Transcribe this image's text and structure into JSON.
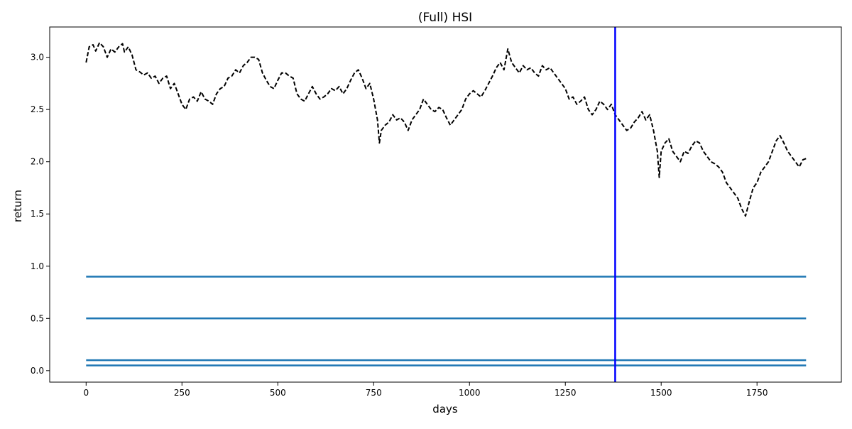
{
  "chart_data": {
    "type": "line",
    "title": "(Full) HSI",
    "xlabel": "days",
    "ylabel": "return",
    "xlim": [
      -95,
      1970
    ],
    "ylim": [
      -0.11,
      3.29
    ],
    "xticks": [
      0,
      250,
      500,
      750,
      1000,
      1250,
      1500,
      1750
    ],
    "yticks": [
      0.0,
      0.5,
      1.0,
      1.5,
      2.0,
      2.5,
      3.0
    ],
    "grid": false,
    "colors": {
      "return_line": "#000000",
      "horizontal_levels": "#1f77b4",
      "split_line": "#0000ff"
    },
    "series": [
      {
        "style": "dashed",
        "points": [
          [
            0,
            2.95
          ],
          [
            8,
            3.1
          ],
          [
            18,
            3.12
          ],
          [
            25,
            3.06
          ],
          [
            35,
            3.14
          ],
          [
            45,
            3.1
          ],
          [
            55,
            3.0
          ],
          [
            65,
            3.08
          ],
          [
            75,
            3.05
          ],
          [
            85,
            3.1
          ],
          [
            95,
            3.13
          ],
          [
            100,
            3.05
          ],
          [
            110,
            3.1
          ],
          [
            120,
            3.02
          ],
          [
            130,
            2.88
          ],
          [
            140,
            2.86
          ],
          [
            150,
            2.83
          ],
          [
            160,
            2.85
          ],
          [
            170,
            2.8
          ],
          [
            180,
            2.82
          ],
          [
            190,
            2.75
          ],
          [
            200,
            2.8
          ],
          [
            210,
            2.82
          ],
          [
            220,
            2.7
          ],
          [
            230,
            2.75
          ],
          [
            240,
            2.65
          ],
          [
            250,
            2.55
          ],
          [
            260,
            2.5
          ],
          [
            270,
            2.6
          ],
          [
            280,
            2.62
          ],
          [
            290,
            2.58
          ],
          [
            300,
            2.67
          ],
          [
            310,
            2.6
          ],
          [
            320,
            2.58
          ],
          [
            330,
            2.55
          ],
          [
            340,
            2.65
          ],
          [
            350,
            2.7
          ],
          [
            360,
            2.72
          ],
          [
            370,
            2.8
          ],
          [
            380,
            2.82
          ],
          [
            390,
            2.88
          ],
          [
            400,
            2.85
          ],
          [
            410,
            2.92
          ],
          [
            420,
            2.95
          ],
          [
            430,
            3.0
          ],
          [
            440,
            3.0
          ],
          [
            450,
            2.98
          ],
          [
            460,
            2.85
          ],
          [
            470,
            2.78
          ],
          [
            480,
            2.72
          ],
          [
            490,
            2.7
          ],
          [
            500,
            2.78
          ],
          [
            510,
            2.85
          ],
          [
            520,
            2.85
          ],
          [
            530,
            2.82
          ],
          [
            540,
            2.8
          ],
          [
            550,
            2.65
          ],
          [
            560,
            2.6
          ],
          [
            570,
            2.58
          ],
          [
            580,
            2.65
          ],
          [
            590,
            2.72
          ],
          [
            600,
            2.65
          ],
          [
            610,
            2.6
          ],
          [
            620,
            2.62
          ],
          [
            630,
            2.65
          ],
          [
            640,
            2.7
          ],
          [
            650,
            2.68
          ],
          [
            660,
            2.72
          ],
          [
            670,
            2.65
          ],
          [
            680,
            2.7
          ],
          [
            690,
            2.78
          ],
          [
            700,
            2.85
          ],
          [
            710,
            2.88
          ],
          [
            720,
            2.8
          ],
          [
            730,
            2.7
          ],
          [
            740,
            2.75
          ],
          [
            750,
            2.6
          ],
          [
            760,
            2.4
          ],
          [
            765,
            2.18
          ],
          [
            770,
            2.3
          ],
          [
            780,
            2.35
          ],
          [
            790,
            2.38
          ],
          [
            800,
            2.45
          ],
          [
            810,
            2.4
          ],
          [
            820,
            2.42
          ],
          [
            830,
            2.38
          ],
          [
            840,
            2.3
          ],
          [
            850,
            2.4
          ],
          [
            860,
            2.45
          ],
          [
            870,
            2.5
          ],
          [
            880,
            2.6
          ],
          [
            890,
            2.55
          ],
          [
            900,
            2.5
          ],
          [
            910,
            2.48
          ],
          [
            920,
            2.52
          ],
          [
            930,
            2.5
          ],
          [
            940,
            2.42
          ],
          [
            950,
            2.35
          ],
          [
            960,
            2.4
          ],
          [
            970,
            2.45
          ],
          [
            980,
            2.5
          ],
          [
            990,
            2.6
          ],
          [
            1000,
            2.65
          ],
          [
            1010,
            2.68
          ],
          [
            1020,
            2.65
          ],
          [
            1030,
            2.62
          ],
          [
            1040,
            2.68
          ],
          [
            1050,
            2.75
          ],
          [
            1060,
            2.82
          ],
          [
            1070,
            2.9
          ],
          [
            1080,
            2.95
          ],
          [
            1090,
            2.88
          ],
          [
            1100,
            3.08
          ],
          [
            1110,
            2.95
          ],
          [
            1120,
            2.9
          ],
          [
            1130,
            2.85
          ],
          [
            1140,
            2.92
          ],
          [
            1150,
            2.88
          ],
          [
            1160,
            2.9
          ],
          [
            1170,
            2.85
          ],
          [
            1180,
            2.82
          ],
          [
            1190,
            2.92
          ],
          [
            1200,
            2.88
          ],
          [
            1210,
            2.9
          ],
          [
            1220,
            2.85
          ],
          [
            1230,
            2.8
          ],
          [
            1240,
            2.75
          ],
          [
            1250,
            2.7
          ],
          [
            1260,
            2.6
          ],
          [
            1270,
            2.62
          ],
          [
            1280,
            2.55
          ],
          [
            1290,
            2.58
          ],
          [
            1300,
            2.62
          ],
          [
            1310,
            2.5
          ],
          [
            1320,
            2.45
          ],
          [
            1330,
            2.5
          ],
          [
            1340,
            2.58
          ],
          [
            1350,
            2.55
          ],
          [
            1360,
            2.5
          ],
          [
            1370,
            2.55
          ],
          [
            1380,
            2.45
          ],
          [
            1390,
            2.4
          ],
          [
            1400,
            2.35
          ],
          [
            1410,
            2.3
          ],
          [
            1420,
            2.32
          ],
          [
            1430,
            2.38
          ],
          [
            1440,
            2.42
          ],
          [
            1450,
            2.48
          ],
          [
            1460,
            2.4
          ],
          [
            1470,
            2.45
          ],
          [
            1480,
            2.3
          ],
          [
            1490,
            2.1
          ],
          [
            1495,
            1.85
          ],
          [
            1500,
            2.1
          ],
          [
            1510,
            2.18
          ],
          [
            1520,
            2.22
          ],
          [
            1530,
            2.1
          ],
          [
            1540,
            2.05
          ],
          [
            1550,
            2.0
          ],
          [
            1560,
            2.1
          ],
          [
            1570,
            2.08
          ],
          [
            1580,
            2.15
          ],
          [
            1590,
            2.2
          ],
          [
            1600,
            2.18
          ],
          [
            1610,
            2.1
          ],
          [
            1620,
            2.05
          ],
          [
            1630,
            2.0
          ],
          [
            1640,
            1.98
          ],
          [
            1650,
            1.95
          ],
          [
            1660,
            1.9
          ],
          [
            1670,
            1.8
          ],
          [
            1680,
            1.75
          ],
          [
            1690,
            1.7
          ],
          [
            1700,
            1.65
          ],
          [
            1710,
            1.55
          ],
          [
            1720,
            1.48
          ],
          [
            1730,
            1.62
          ],
          [
            1740,
            1.75
          ],
          [
            1750,
            1.8
          ],
          [
            1760,
            1.9
          ],
          [
            1770,
            1.95
          ],
          [
            1780,
            2.0
          ],
          [
            1790,
            2.1
          ],
          [
            1800,
            2.2
          ],
          [
            1810,
            2.25
          ],
          [
            1820,
            2.18
          ],
          [
            1830,
            2.1
          ],
          [
            1840,
            2.05
          ],
          [
            1850,
            2.0
          ],
          [
            1860,
            1.95
          ],
          [
            1870,
            2.02
          ],
          [
            1878,
            2.03
          ]
        ]
      }
    ],
    "horizontal_lines": [
      {
        "y": 0.9,
        "x_start": 0,
        "x_end": 1878
      },
      {
        "y": 0.5,
        "x_start": 0,
        "x_end": 1878
      },
      {
        "y": 0.1,
        "x_start": 0,
        "x_end": 1878
      },
      {
        "y": 0.05,
        "x_start": 0,
        "x_end": 1878
      }
    ],
    "vertical_lines": [
      {
        "x": 1380
      }
    ]
  }
}
